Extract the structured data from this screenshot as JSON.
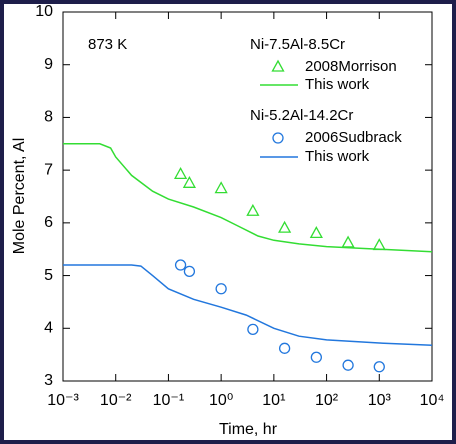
{
  "chart_data": {
    "type": "line",
    "xlabel": "Time, hr",
    "ylabel": "Mole Percent, Al",
    "annotations": [
      "873 K",
      "Ni-7.5Al-8.5Cr",
      "Ni-5.2Al-14.2Cr"
    ],
    "xscale": "log",
    "xlim": [
      0.001,
      10000
    ],
    "xticks": [
      {
        "value": 0.001,
        "label": "10⁻³"
      },
      {
        "value": 0.01,
        "label": "10⁻²"
      },
      {
        "value": 0.1,
        "label": "10⁻¹"
      },
      {
        "value": 1,
        "label": "10⁰"
      },
      {
        "value": 10,
        "label": "10¹"
      },
      {
        "value": 100,
        "label": "10²"
      },
      {
        "value": 1000,
        "label": "10³"
      },
      {
        "value": 10000,
        "label": "10⁴"
      }
    ],
    "ylim": [
      3,
      10
    ],
    "yticks": [
      3,
      4,
      5,
      6,
      7,
      8,
      9,
      10
    ],
    "series": [
      {
        "name": "2008Morrison",
        "color": "#33dd33",
        "marker": "triangle",
        "group": 1,
        "x": [
          0.17,
          0.25,
          1,
          4,
          16,
          64,
          256,
          1000
        ],
        "values": [
          6.92,
          6.75,
          6.65,
          6.22,
          5.9,
          5.8,
          5.62,
          5.57
        ]
      },
      {
        "name": "This work",
        "color": "#33dd33",
        "group": 1,
        "x": [
          0.001,
          0.005,
          0.008,
          0.01,
          0.02,
          0.05,
          0.1,
          0.3,
          1,
          2,
          5,
          10,
          30,
          100,
          1000,
          10000
        ],
        "values": [
          7.5,
          7.5,
          7.42,
          7.25,
          6.9,
          6.6,
          6.45,
          6.3,
          6.1,
          5.95,
          5.75,
          5.67,
          5.6,
          5.55,
          5.5,
          5.45
        ]
      },
      {
        "name": "2006Sudbrack",
        "color": "#2277dd",
        "marker": "circle",
        "group": 2,
        "x": [
          0.17,
          0.25,
          1,
          4,
          16,
          64,
          256,
          1000
        ],
        "values": [
          5.2,
          5.08,
          4.75,
          3.98,
          3.62,
          3.45,
          3.3,
          3.27
        ]
      },
      {
        "name": "This work",
        "color": "#2277dd",
        "group": 2,
        "x": [
          0.001,
          0.02,
          0.03,
          0.05,
          0.1,
          0.3,
          1,
          3,
          10,
          30,
          100,
          1000,
          10000
        ],
        "values": [
          5.2,
          5.2,
          5.18,
          5.0,
          4.75,
          4.55,
          4.4,
          4.25,
          4.0,
          3.85,
          3.78,
          3.72,
          3.68
        ]
      }
    ]
  }
}
